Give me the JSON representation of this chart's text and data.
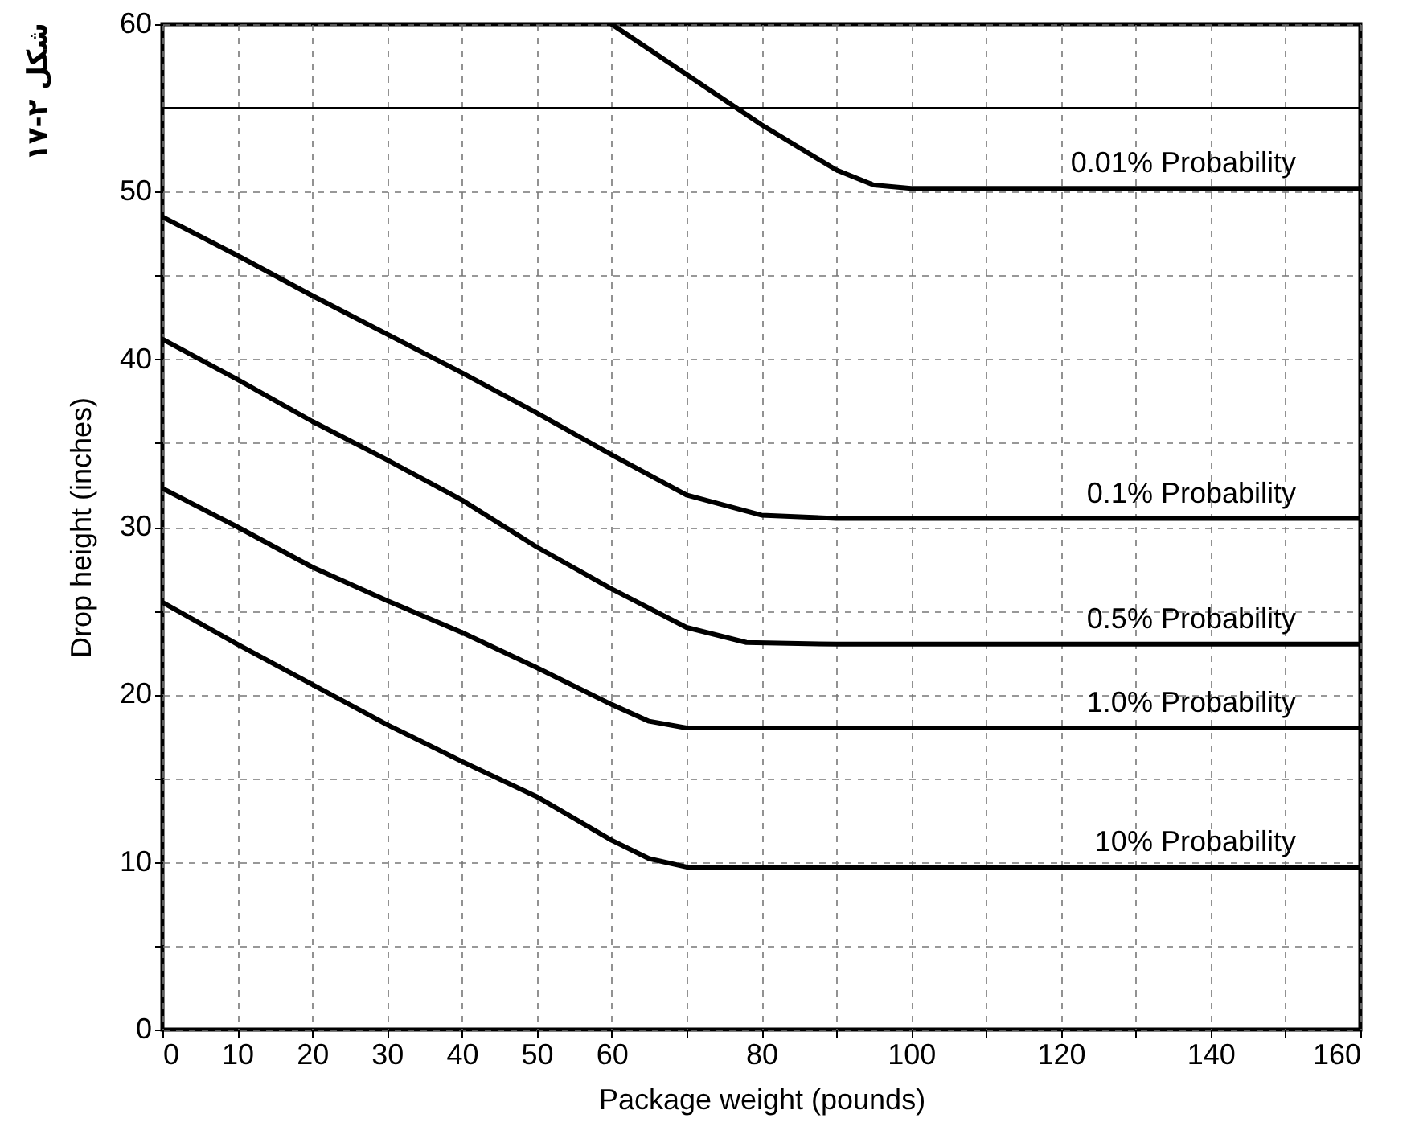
{
  "chart_data": {
    "type": "line",
    "xlabel": "Package weight (pounds)",
    "ylabel": "Drop height (inches)",
    "annotations": [
      "شکل ۲-۱۷"
    ],
    "xlim": [
      0,
      160
    ],
    "xticks": [
      0,
      10,
      20,
      30,
      40,
      50,
      60,
      {
        "value": 70,
        "label": null
      },
      80,
      {
        "value": 90,
        "label": null
      },
      100,
      {
        "value": 110,
        "label": null
      },
      120,
      {
        "value": 130,
        "label": null
      },
      140,
      {
        "value": 150,
        "label": null
      },
      160
    ],
    "ylim": [
      0,
      60
    ],
    "yticks": [
      0,
      {
        "value": 5,
        "label": null
      },
      10,
      {
        "value": 15,
        "label": null
      },
      20,
      {
        "value": 25,
        "label": null
      },
      30,
      {
        "value": 35,
        "label": null
      },
      40,
      {
        "value": 45,
        "label": null
      },
      50,
      60
    ],
    "grid": true,
    "marker": "none",
    "line_style": "solid",
    "ref_lines": [
      {
        "axis": "y",
        "value": 55,
        "color": "#000000"
      }
    ],
    "series": [
      {
        "name": "0.01% Probability",
        "color": "#000000",
        "x": [
          60,
          70,
          80,
          90,
          95,
          100,
          160
        ],
        "values": [
          60,
          57,
          54,
          51.3,
          50.4,
          50.2,
          50.2
        ]
      },
      {
        "name": "0.1% Probability",
        "color": "#000000",
        "x": [
          0,
          10,
          20,
          30,
          40,
          50,
          60,
          70,
          80,
          90,
          160
        ],
        "values": [
          48.5,
          46.2,
          43.8,
          41.5,
          39.2,
          36.8,
          34.3,
          31.9,
          30.7,
          30.5,
          30.5
        ]
      },
      {
        "name": "0.5% Probability",
        "color": "#000000",
        "x": [
          0,
          10,
          20,
          30,
          40,
          50,
          60,
          70,
          78,
          90,
          160
        ],
        "values": [
          41.2,
          38.8,
          36.3,
          34,
          31.6,
          28.8,
          26.3,
          24,
          23.1,
          23,
          23
        ]
      },
      {
        "name": "1.0% Probability",
        "color": "#000000",
        "x": [
          0,
          10,
          20,
          30,
          40,
          50,
          60,
          65,
          70,
          80,
          160
        ],
        "values": [
          32.3,
          30,
          27.6,
          25.6,
          23.7,
          21.6,
          19.4,
          18.4,
          18,
          18,
          18
        ]
      },
      {
        "name": "10% Probability",
        "color": "#000000",
        "x": [
          0,
          10,
          20,
          30,
          40,
          50,
          60,
          65,
          70,
          80,
          160
        ],
        "values": [
          25.5,
          23,
          20.6,
          18.2,
          16,
          13.9,
          11.3,
          10.2,
          9.7,
          9.7,
          9.7
        ]
      }
    ]
  }
}
